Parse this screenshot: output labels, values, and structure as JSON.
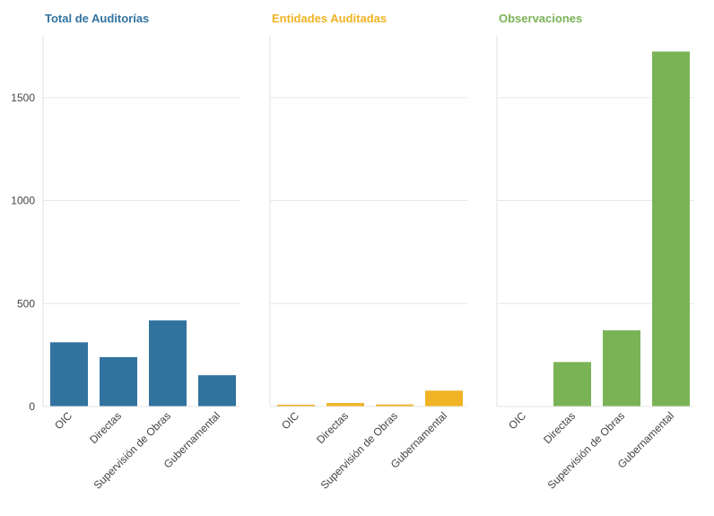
{
  "chart_data": {
    "type": "bar",
    "categories": [
      "OIC",
      "Directas",
      "Supervisión de Obras",
      "Gubernamental"
    ],
    "ylim": [
      0,
      1800
    ],
    "yticks": [
      0,
      500,
      1000,
      1500
    ],
    "grid": true,
    "panels": [
      {
        "title": "Total de Auditorías",
        "color": "#31729f",
        "values": [
          312,
          240,
          418,
          152
        ]
      },
      {
        "title": "Entidades Auditadas",
        "color": "#f0b323",
        "values": [
          8,
          17,
          10,
          77
        ]
      },
      {
        "title": "Observaciones",
        "color": "#7ab356",
        "values": [
          0,
          216,
          370,
          1724
        ]
      }
    ]
  }
}
